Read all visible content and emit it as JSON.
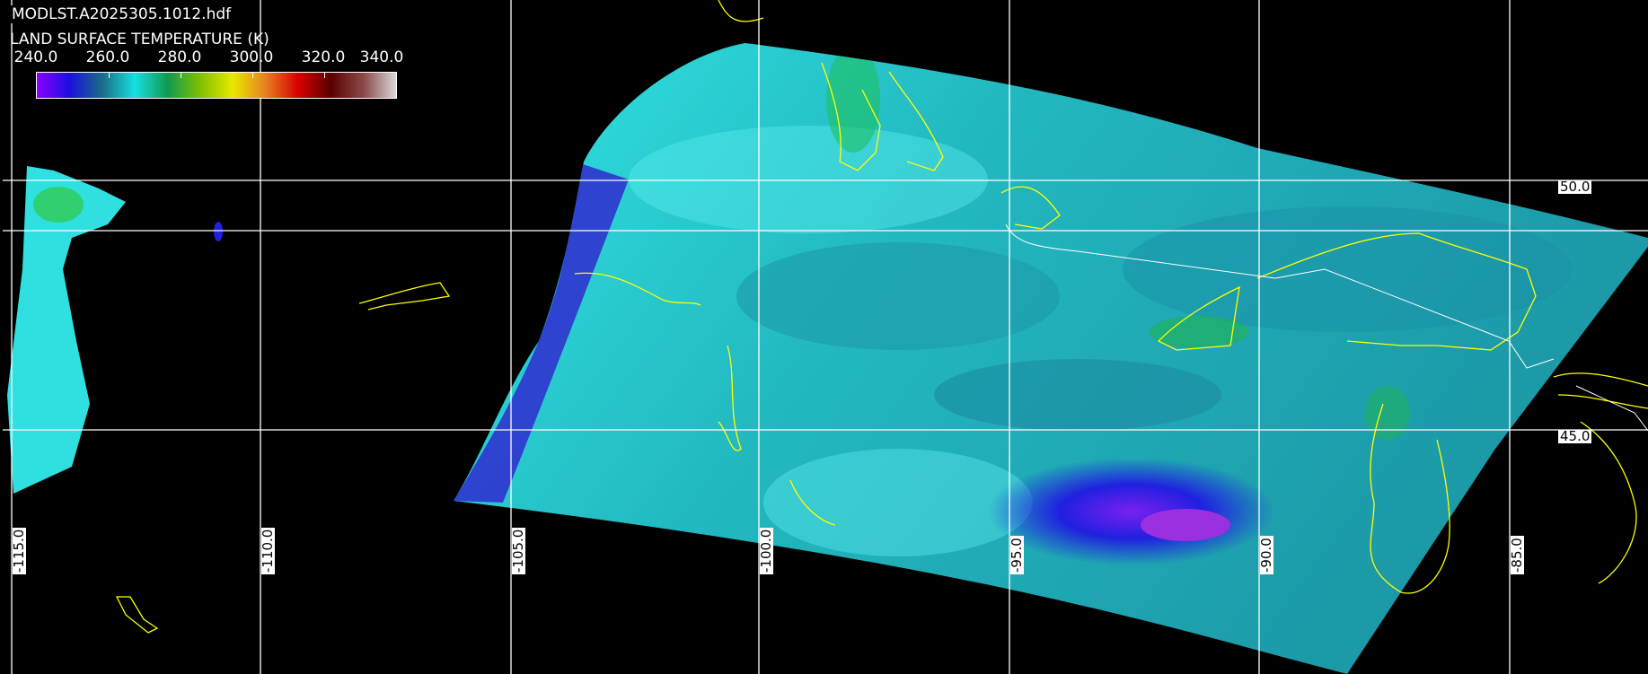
{
  "header": {
    "filename": "MODLST.A2025305.1012.hdf",
    "variable_title": "LAND SURFACE TEMPERATURE (K)"
  },
  "colorbar": {
    "tick_labels": [
      "240.0",
      "260.0",
      "280.0",
      "300.0",
      "320.0",
      "340.0"
    ],
    "range": [
      240,
      340
    ],
    "unit": "K",
    "colors": [
      "#8a00ff",
      "#1a10e0",
      "#1a6c86",
      "#16e0e0",
      "#109a50",
      "#80c000",
      "#e8e800",
      "#e88020",
      "#d80000",
      "#5a0000",
      "#8c4848",
      "#d8d8d8"
    ]
  },
  "map": {
    "latitude_labels": [
      "50.0",
      "45.0"
    ],
    "longitude_labels": [
      "-115.0",
      "-110.0",
      "-105.0",
      "-100.0",
      "-95.0",
      "-90.0",
      "-85.0"
    ],
    "grid_color": "#ffffff",
    "coastline_color": "#ffff00",
    "border_color": "#ffffff",
    "background_color": "#000000"
  }
}
